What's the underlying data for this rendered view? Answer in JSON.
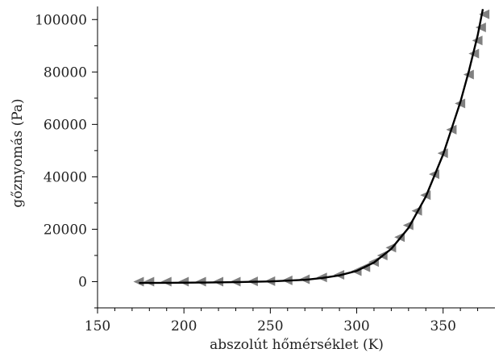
{
  "chart_data": {
    "type": "scatter",
    "xlabel": "abszolút hőmérséklet (K)",
    "ylabel": "gőznyomás (Pa)",
    "xlim": [
      150,
      380
    ],
    "ylim": [
      -10000,
      105000
    ],
    "x_ticks": [
      150,
      200,
      250,
      300,
      350
    ],
    "y_ticks": [
      0,
      20000,
      40000,
      60000,
      80000,
      100000
    ],
    "x_tick_labels": [
      "150",
      "200",
      "250",
      "300",
      "350"
    ],
    "y_tick_labels": [
      "0",
      "20000",
      "40000",
      "60000",
      "80000",
      "100000"
    ],
    "grid": false,
    "legend": "none",
    "series": [
      {
        "role": "measured",
        "marker": "left-triangle",
        "color": "#808080",
        "points": [
          [
            174,
            0
          ],
          [
            180,
            0
          ],
          [
            190,
            0
          ],
          [
            200,
            0
          ],
          [
            210,
            0
          ],
          [
            220,
            0
          ],
          [
            230,
            0
          ],
          [
            240,
            100
          ],
          [
            250,
            200
          ],
          [
            260,
            500
          ],
          [
            270,
            900
          ],
          [
            280,
            1600
          ],
          [
            290,
            2600
          ],
          [
            300,
            4000
          ],
          [
            305,
            5500
          ],
          [
            310,
            7500
          ],
          [
            315,
            10000
          ],
          [
            320,
            13000
          ],
          [
            325,
            17000
          ],
          [
            330,
            21500
          ],
          [
            335,
            27000
          ],
          [
            340,
            33000
          ],
          [
            345,
            41000
          ],
          [
            350,
            49000
          ],
          [
            355,
            58000
          ],
          [
            360,
            68000
          ],
          [
            365,
            79000
          ],
          [
            368,
            87000
          ],
          [
            370,
            92000
          ],
          [
            372,
            97000
          ],
          [
            374,
            102000
          ]
        ]
      },
      {
        "role": "fit",
        "line": "solid",
        "color": "#000000",
        "points": [
          [
            174,
            -500
          ],
          [
            190,
            -450
          ],
          [
            210,
            -350
          ],
          [
            230,
            -200
          ],
          [
            250,
            100
          ],
          [
            270,
            700
          ],
          [
            280,
            1400
          ],
          [
            290,
            2400
          ],
          [
            300,
            4100
          ],
          [
            310,
            7300
          ],
          [
            320,
            12500
          ],
          [
            330,
            20500
          ],
          [
            340,
            32500
          ],
          [
            350,
            48500
          ],
          [
            360,
            68500
          ],
          [
            365,
            80500
          ],
          [
            370,
            94000
          ],
          [
            373,
            104000
          ]
        ]
      }
    ]
  }
}
